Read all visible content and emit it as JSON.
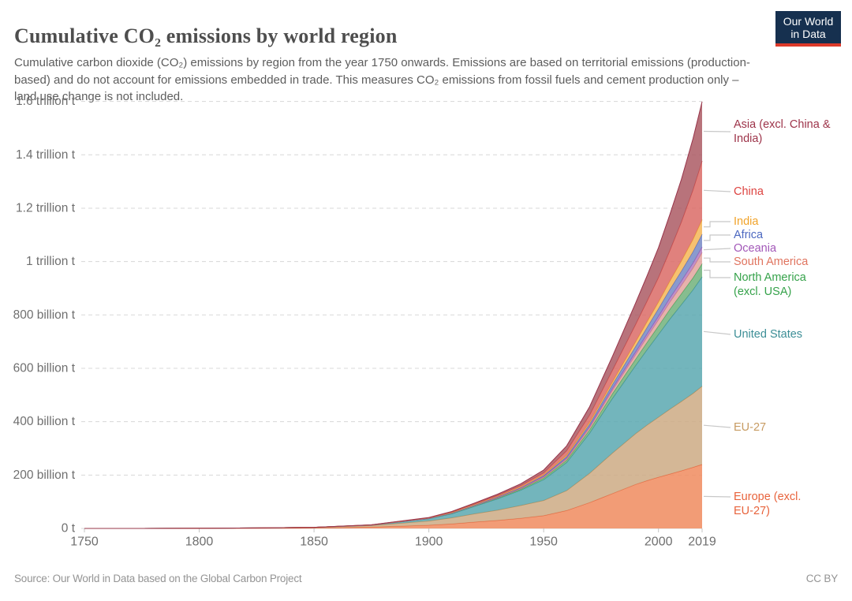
{
  "header": {
    "title": "Cumulative CO₂ emissions by world region",
    "subtitle": "Cumulative carbon dioxide (CO₂) emissions by region from the year 1750 onwards. Emissions are based on territorial emissions (production-based) and do not account for emissions embedded in trade. This measures CO₂ emissions from fossil fuels and cement production only – land use change is not included.",
    "logo_line1": "Our World",
    "logo_line2": "in Data",
    "logo_bg_color": "#16304f",
    "logo_bar_color": "#dc3a2a"
  },
  "footer": {
    "source": "Source: Our World in Data based on the Global Carbon Project",
    "license": "CC BY"
  },
  "chart_data": {
    "type": "area",
    "stacked": true,
    "title": "Cumulative CO₂ emissions by world region",
    "xlabel": "",
    "ylabel": "",
    "unit": "tonnes of CO₂ (billion t)",
    "grid": "dashed horizontal",
    "legend_position": "right, color-coded labels with connector lines",
    "xlim": [
      1750,
      2019
    ],
    "ylim": [
      0,
      1600
    ],
    "x": [
      1750,
      1775,
      1800,
      1825,
      1850,
      1875,
      1900,
      1910,
      1920,
      1930,
      1940,
      1950,
      1960,
      1970,
      1980,
      1990,
      1995,
      2000,
      2005,
      2010,
      2015,
      2019
    ],
    "x_ticks": [
      1750,
      1800,
      1850,
      1900,
      1950,
      2000,
      2019
    ],
    "y_ticks": [
      {
        "value": 0,
        "label": "0 t"
      },
      {
        "value": 200,
        "label": "200 billion t"
      },
      {
        "value": 400,
        "label": "400 billion t"
      },
      {
        "value": 600,
        "label": "600 billion t"
      },
      {
        "value": 800,
        "label": "800 billion t"
      },
      {
        "value": 1000,
        "label": "1 trillion t"
      },
      {
        "value": 1200,
        "label": "1.2 trillion t"
      },
      {
        "value": 1400,
        "label": "1.4 trillion t"
      },
      {
        "value": 1600,
        "label": "1.6 trillion t"
      }
    ],
    "series_note": "values are cumulative billion tonnes CO₂; series listed bottom of stack to top",
    "series": [
      {
        "name": "Europe (excl. EU-27)",
        "label_lines": [
          "Europe (excl.",
          "EU-27)"
        ],
        "color": "#e8633c",
        "fill": "#f08b5e",
        "stroke": "#e8633c",
        "values": [
          0,
          0.05,
          0.25,
          0.7,
          1.6,
          5,
          12,
          17,
          24,
          30,
          38,
          48,
          67,
          97,
          131,
          165,
          179,
          192,
          204,
          216,
          229,
          240
        ]
      },
      {
        "name": "EU-27",
        "label_lines": [
          "EU-27"
        ],
        "color": "#c79b62",
        "fill": "#cdaa84",
        "stroke": "#be8e54",
        "values": [
          0,
          0.08,
          0.3,
          1,
          2.3,
          6,
          16,
          23,
          31,
          39,
          48,
          57,
          75,
          110,
          152,
          190,
          208,
          225,
          243,
          260,
          277,
          293
        ]
      },
      {
        "name": "United States",
        "label_lines": [
          "United States"
        ],
        "color": "#3c8e96",
        "fill": "#5aa8b0",
        "stroke": "#37909a",
        "values": [
          0,
          0,
          0.02,
          0.08,
          0.2,
          1.5,
          8,
          15,
          28,
          42,
          57,
          78,
          105,
          150,
          205,
          255,
          282,
          310,
          338,
          363,
          388,
          410
        ]
      },
      {
        "name": "North America (excl. USA)",
        "label_lines": [
          "North America",
          "(excl. USA)"
        ],
        "color": "#35a24a",
        "fill": "#71b27b",
        "stroke": "#3ca352",
        "values": [
          0,
          0,
          0,
          0.01,
          0.03,
          0.15,
          0.9,
          1.5,
          2.3,
          3.1,
          4,
          6,
          8.5,
          12.5,
          18,
          24,
          28,
          32,
          36.5,
          41,
          45,
          49
        ]
      },
      {
        "name": "South America",
        "label_lines": [
          "South America"
        ],
        "color": "#e0745f",
        "fill": "#e2a59f",
        "stroke": "#dc8074",
        "values": [
          0,
          0,
          0,
          0,
          0.02,
          0.1,
          0.3,
          0.5,
          0.8,
          1.2,
          1.8,
          3,
          4.8,
          7.5,
          12,
          16.5,
          19.5,
          23,
          27,
          31,
          36.5,
          42
        ]
      },
      {
        "name": "Oceania",
        "label_lines": [
          "Oceania"
        ],
        "color": "#a257b8",
        "fill": "#b17ec1",
        "stroke": "#9e56b2",
        "values": [
          0,
          0,
          0,
          0,
          0.02,
          0.1,
          0.6,
          0.9,
          1.3,
          1.8,
          2.4,
          3.2,
          4.2,
          5.8,
          8,
          10.5,
          12,
          13.5,
          15.2,
          17,
          19,
          21
        ]
      },
      {
        "name": "Africa",
        "label_lines": [
          "Africa"
        ],
        "color": "#4c68c0",
        "fill": "#7688c6",
        "stroke": "#4d68be",
        "values": [
          0,
          0,
          0,
          0,
          0.01,
          0.08,
          0.4,
          0.7,
          1,
          1.5,
          2,
          3.2,
          5,
          8.5,
          14,
          21,
          24.5,
          28,
          32.5,
          37,
          42.5,
          48
        ]
      },
      {
        "name": "India",
        "label_lines": [
          "India"
        ],
        "color": "#f1a32a",
        "fill": "#f5b657",
        "stroke": "#efa22e",
        "values": [
          0,
          0,
          0,
          0,
          0.01,
          0.3,
          0.7,
          1.1,
          1.5,
          2,
          2.7,
          3.5,
          5,
          7,
          10,
          17,
          21,
          25,
          31,
          38,
          46,
          54
        ]
      },
      {
        "name": "China",
        "label_lines": [
          "China"
        ],
        "color": "#dd4340",
        "fill": "#da6b66",
        "stroke": "#ce4c49",
        "values": [
          0,
          0,
          0,
          0,
          0.01,
          0.1,
          1,
          1.7,
          2.5,
          3.6,
          5,
          7,
          17,
          27,
          44,
          65,
          77,
          92,
          115,
          146,
          185,
          220
        ]
      },
      {
        "name": "Asia (excl. China & India)",
        "label_lines": [
          "Asia (excl. China &",
          "India)"
        ],
        "color": "#9d3349",
        "fill": "#ab5a64",
        "stroke": "#97344a",
        "values": [
          0,
          0,
          0,
          0,
          0.02,
          0.2,
          1.2,
          2,
          3,
          4.5,
          6.5,
          10,
          18,
          31,
          52,
          80,
          95,
          112,
          135,
          160,
          192,
          222
        ]
      }
    ]
  }
}
